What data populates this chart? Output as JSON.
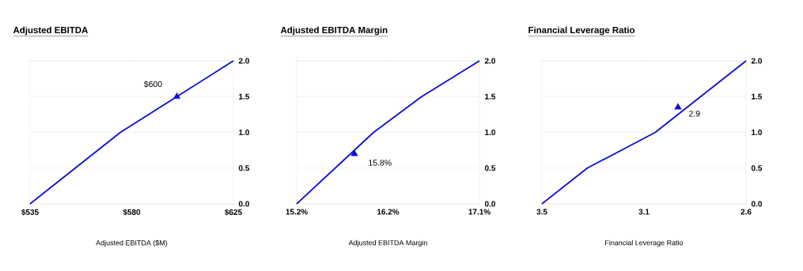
{
  "chart_data": [
    {
      "type": "line",
      "title": "Adjusted EBITDA",
      "xlabel": "Adjusted EBITDA ($M)",
      "xlim": [
        535,
        625
      ],
      "xticks": [
        {
          "value": 535,
          "label": "$535"
        },
        {
          "value": 580,
          "label": "$580"
        },
        {
          "value": 625,
          "label": "$625"
        }
      ],
      "ylim": [
        0,
        2
      ],
      "yticks": [
        {
          "value": 0,
          "label": "0.0"
        },
        {
          "value": 0.5,
          "label": "0.5"
        },
        {
          "value": 1,
          "label": "1.0"
        },
        {
          "value": 1.5,
          "label": "1.5"
        },
        {
          "value": 2,
          "label": "2.0"
        }
      ],
      "grid": "y",
      "series": [
        {
          "x": [
            535,
            555,
            575,
            600,
            625
          ],
          "values": [
            0,
            0.5,
            1.0,
            1.5,
            2.0
          ],
          "color": "#0b0bdb"
        },
        {
          "type": "scatter",
          "marker": "triangle",
          "x": [
            600
          ],
          "values": [
            1.5
          ],
          "color": "#0b0bdb"
        }
      ],
      "annotations": [
        {
          "text": "$600",
          "x": 600,
          "y": 1.5
        }
      ]
    },
    {
      "type": "line",
      "title": "Adjusted EBITDA Margin",
      "xlabel": "Adjusted EBITDA Margin",
      "xlim": [
        15.2,
        17.1
      ],
      "xticks": [
        {
          "value": 15.2,
          "label": "15.2%"
        },
        {
          "value": 16.15,
          "label": "16.2%"
        },
        {
          "value": 17.1,
          "label": "17.1%"
        }
      ],
      "ylim": [
        0,
        2
      ],
      "yticks": [
        {
          "value": 0,
          "label": "0.0"
        },
        {
          "value": 0.5,
          "label": "0.5"
        },
        {
          "value": 1,
          "label": "1.0"
        },
        {
          "value": 1.5,
          "label": "1.5"
        },
        {
          "value": 2,
          "label": "2.0"
        }
      ],
      "grid": "y",
      "series": [
        {
          "x": [
            15.2,
            15.6,
            16.0,
            16.5,
            17.1
          ],
          "values": [
            0,
            0.5,
            1.0,
            1.5,
            2.0
          ],
          "color": "#0b0bdb"
        },
        {
          "type": "scatter",
          "marker": "triangle",
          "x": [
            15.8
          ],
          "values": [
            0.7
          ],
          "color": "#0b0bdb"
        }
      ],
      "annotations": [
        {
          "text": "15.8%",
          "x": 15.8,
          "y": 0.7
        }
      ]
    },
    {
      "type": "line",
      "title": "Financial Leverage Ratio",
      "xlabel": "Financial Leverage Ratio",
      "xlim": [
        3.5,
        2.6
      ],
      "xticks": [
        {
          "value": 3.5,
          "label": "3.5"
        },
        {
          "value": 3.05,
          "label": "3.1"
        },
        {
          "value": 2.6,
          "label": "2.6"
        }
      ],
      "ylim": [
        0,
        2
      ],
      "yticks": [
        {
          "value": 0,
          "label": "0.0"
        },
        {
          "value": 0.5,
          "label": "0.5"
        },
        {
          "value": 1,
          "label": "1.0"
        },
        {
          "value": 1.5,
          "label": "1.5"
        },
        {
          "value": 2,
          "label": "2.0"
        }
      ],
      "grid": "y",
      "series": [
        {
          "x": [
            3.5,
            3.3,
            3.0,
            2.8,
            2.6
          ],
          "values": [
            0,
            0.5,
            1.0,
            1.5,
            2.0
          ],
          "color": "#0b0bdb"
        },
        {
          "type": "scatter",
          "marker": "triangle",
          "x": [
            2.9
          ],
          "values": [
            1.35
          ],
          "color": "#0b0bdb"
        }
      ],
      "annotations": [
        {
          "text": "2.9",
          "x": 2.9,
          "y": 1.35
        }
      ]
    }
  ]
}
